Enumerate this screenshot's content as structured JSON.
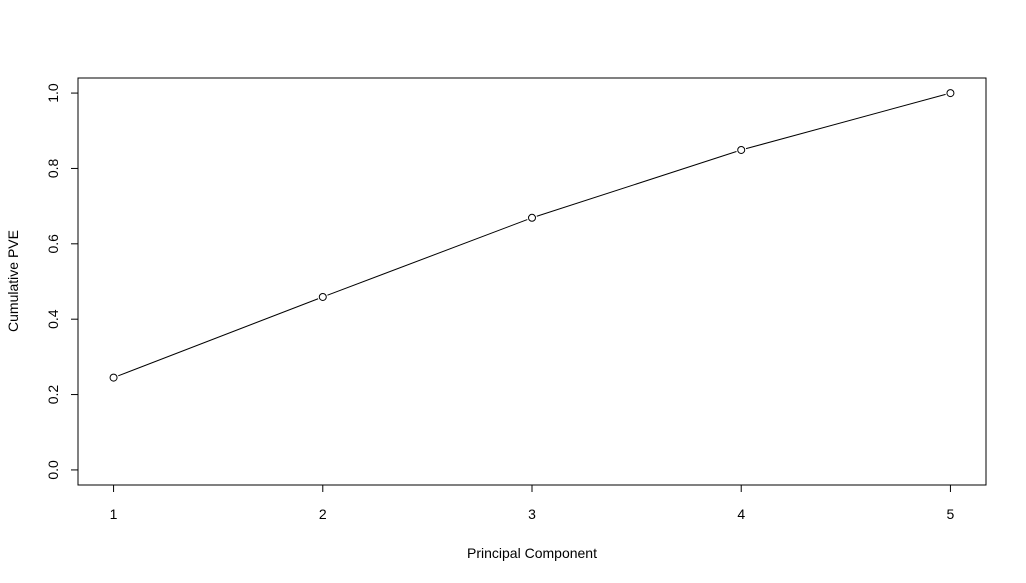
{
  "chart_data": {
    "type": "line",
    "x": [
      1,
      2,
      3,
      4,
      5
    ],
    "values": [
      0.245,
      0.459,
      0.669,
      0.849,
      1.0
    ],
    "markers": "open-circle",
    "xlabel": "Principal Component",
    "ylabel": "Cumulative PVE",
    "xlim": [
      0.83,
      5.17
    ],
    "ylim": [
      -0.04,
      1.04
    ],
    "xticks": [
      1,
      2,
      3,
      4,
      5
    ],
    "xtick_labels": [
      "1",
      "2",
      "3",
      "4",
      "5"
    ],
    "yticks": [
      0.0,
      0.2,
      0.4,
      0.6,
      0.8,
      1.0
    ],
    "ytick_labels": [
      "0.0",
      "0.2",
      "0.4",
      "0.6",
      "0.8",
      "1.0"
    ],
    "grid": false,
    "line_color": "#000000",
    "marker_fill": "#ffffff"
  }
}
